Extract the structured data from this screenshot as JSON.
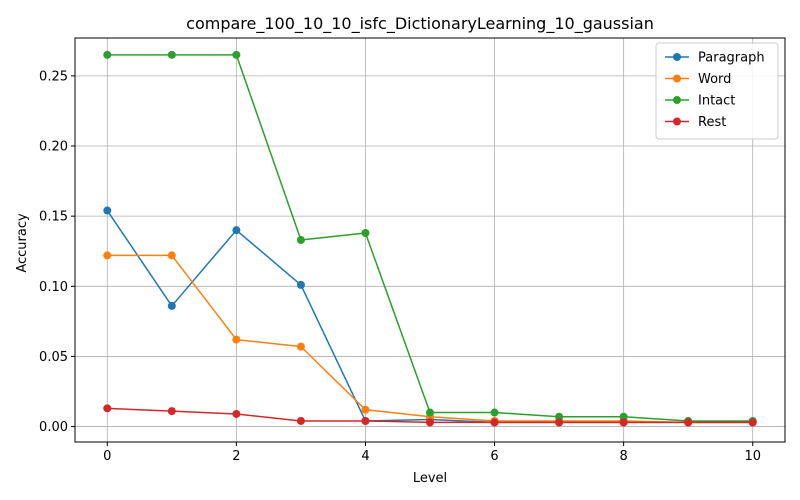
{
  "chart_data": {
    "type": "line",
    "title": "compare_100_10_10_isfc_DictionaryLearning_10_gaussian",
    "xlabel": "Level",
    "ylabel": "Accuracy",
    "x": [
      0,
      1,
      2,
      3,
      4,
      5,
      6,
      7,
      8,
      9,
      10
    ],
    "xlim": [
      -0.5,
      10.5
    ],
    "ylim": [
      -0.011,
      0.277
    ],
    "xticks": [
      0,
      2,
      4,
      6,
      8,
      10
    ],
    "xtick_labels": [
      "0",
      "2",
      "4",
      "6",
      "8",
      "10"
    ],
    "yticks": [
      0.0,
      0.05,
      0.1,
      0.15,
      0.2,
      0.25
    ],
    "ytick_labels": [
      "0.00",
      "0.05",
      "0.10",
      "0.15",
      "0.20",
      "0.25"
    ],
    "grid": true,
    "legend_position": "top-right",
    "series": [
      {
        "name": "Paragraph",
        "color": "#1f77b4",
        "values": [
          0.154,
          0.086,
          0.14,
          0.101,
          0.004,
          0.005,
          0.003,
          0.003,
          0.003,
          0.003,
          0.003
        ]
      },
      {
        "name": "Word",
        "color": "#ff7f0e",
        "values": [
          0.122,
          0.122,
          0.062,
          0.057,
          0.012,
          0.007,
          0.004,
          0.004,
          0.004,
          0.003,
          0.003
        ]
      },
      {
        "name": "Intact",
        "color": "#2ca02c",
        "values": [
          0.265,
          0.265,
          0.265,
          0.133,
          0.138,
          0.01,
          0.01,
          0.007,
          0.007,
          0.004,
          0.004
        ]
      },
      {
        "name": "Rest",
        "color": "#d62728",
        "values": [
          0.013,
          0.011,
          0.009,
          0.004,
          0.004,
          0.003,
          0.003,
          0.003,
          0.003,
          0.003,
          0.003
        ]
      }
    ]
  }
}
